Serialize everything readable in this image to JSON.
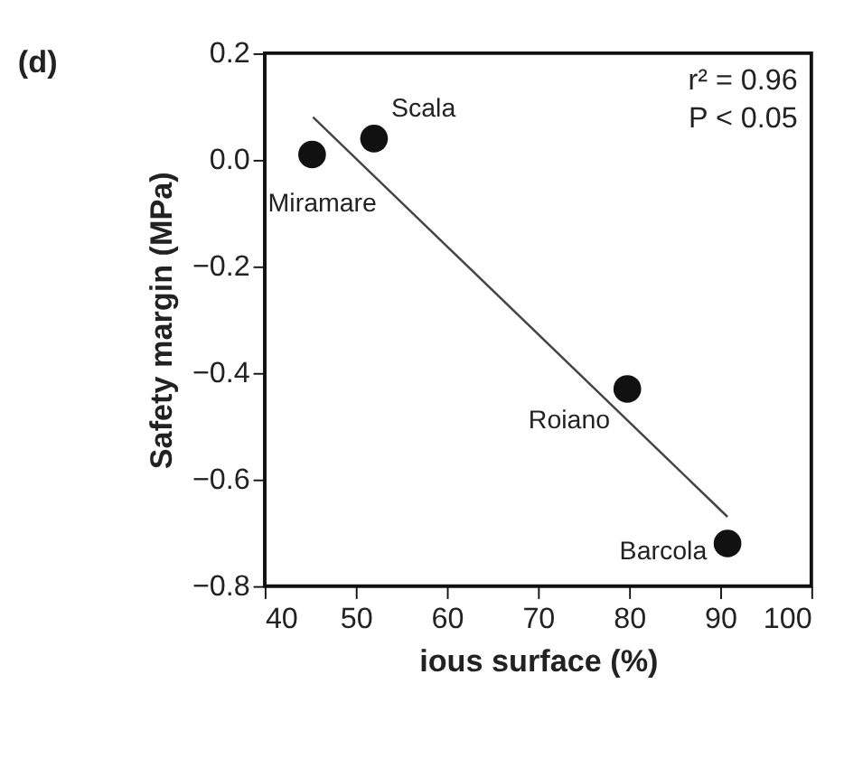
{
  "chart_data": {
    "type": "scatter",
    "title": "(d)",
    "xlabel": "ious surface (%)",
    "ylabel": "Safety margin (MPa)",
    "x": [
      45.2,
      52.0,
      79.8,
      90.8
    ],
    "series": [
      {
        "color": "#111111",
        "values": [
          0.01,
          0.04,
          -0.43,
          -0.72
        ],
        "marker": "circle"
      },
      {
        "type": "line",
        "color": "#444444",
        "x": [
          45.3,
          90.8
        ],
        "values": [
          0.08,
          -0.67
        ],
        "line_style": "solid",
        "marker": "none"
      }
    ],
    "xlim": [
      40,
      100
    ],
    "xticks": [
      40,
      50,
      60,
      70,
      80,
      90,
      100
    ],
    "ylim": [
      -0.8,
      0.2
    ],
    "yticks": [
      {
        "value": -0.8,
        "label": "−0.8"
      },
      {
        "value": -0.6,
        "label": "−0.6"
      },
      {
        "value": -0.4,
        "label": "−0.4"
      },
      {
        "value": -0.2,
        "label": "−0.2"
      },
      {
        "value": 0.0,
        "label": "0.0"
      },
      {
        "value": 0.2,
        "label": "0.2"
      }
    ],
    "annotations": [
      {
        "text": "Miramare",
        "x": 45.2,
        "y": 0.01
      },
      {
        "text": "Scala",
        "x": 52.0,
        "y": 0.04
      },
      {
        "text": "Roiano",
        "x": 79.8,
        "y": -0.43
      },
      {
        "text": "Barcola",
        "x": 90.8,
        "y": -0.72
      },
      "r² = 0.96",
      "P < 0.05"
    ],
    "grid": false
  }
}
